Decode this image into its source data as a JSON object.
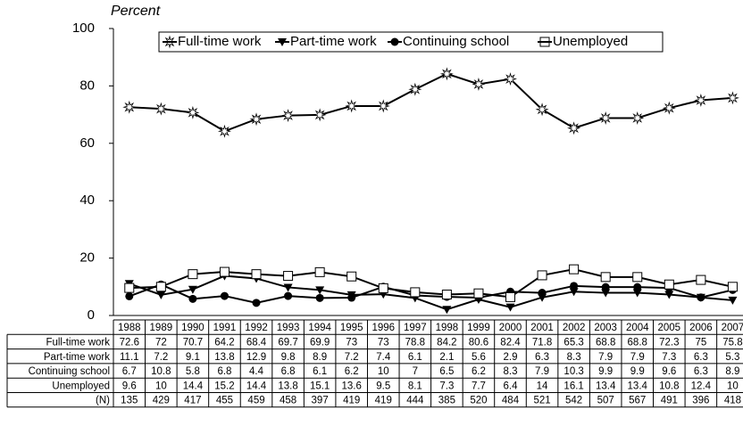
{
  "chart_data": {
    "type": "line",
    "y_label": "Percent",
    "categories": [
      "1988",
      "1989",
      "1990",
      "1991",
      "1992",
      "1993",
      "1994",
      "1995",
      "1996",
      "1997",
      "1998",
      "1999",
      "2000",
      "2001",
      "2002",
      "2003",
      "2004",
      "2005",
      "2006",
      "2007"
    ],
    "ylim": [
      0,
      100
    ],
    "yticks": [
      0,
      20,
      40,
      60,
      80,
      100
    ],
    "grid": false,
    "legend": "top",
    "series": [
      {
        "name": "Full-time work",
        "color": "#000000",
        "marker": "star",
        "values": [
          72.6,
          72,
          70.7,
          64.2,
          68.4,
          69.7,
          69.9,
          73,
          73,
          78.8,
          84.2,
          80.6,
          82.4,
          71.8,
          65.3,
          68.8,
          68.8,
          72.3,
          75,
          75.8
        ]
      },
      {
        "name": "Part-time work",
        "color": "#000000",
        "marker": "triangle-down",
        "values": [
          11.1,
          7.2,
          9.1,
          13.8,
          12.9,
          9.8,
          8.9,
          7.2,
          7.4,
          6.1,
          2.1,
          5.6,
          2.9,
          6.3,
          8.3,
          7.9,
          7.9,
          7.3,
          6.3,
          5.3
        ]
      },
      {
        "name": "Continuing school",
        "color": "#000000",
        "marker": "circle",
        "values": [
          6.7,
          10.8,
          5.8,
          6.8,
          4.4,
          6.8,
          6.1,
          6.2,
          10,
          7,
          6.5,
          6.2,
          8.3,
          7.9,
          10.3,
          9.9,
          9.9,
          9.6,
          6.3,
          8.9
        ]
      },
      {
        "name": "Unemployed",
        "color": "#000000",
        "marker": "square",
        "values": [
          9.6,
          10,
          14.4,
          15.2,
          14.4,
          13.8,
          15.1,
          13.6,
          9.5,
          8.1,
          7.3,
          7.7,
          6.4,
          14,
          16.1,
          13.4,
          13.4,
          10.8,
          12.4,
          10
        ]
      }
    ],
    "n_label": "(N)",
    "n_values": [
      135,
      429,
      417,
      455,
      459,
      458,
      397,
      419,
      419,
      444,
      385,
      520,
      484,
      521,
      542,
      507,
      567,
      491,
      396,
      418
    ]
  }
}
